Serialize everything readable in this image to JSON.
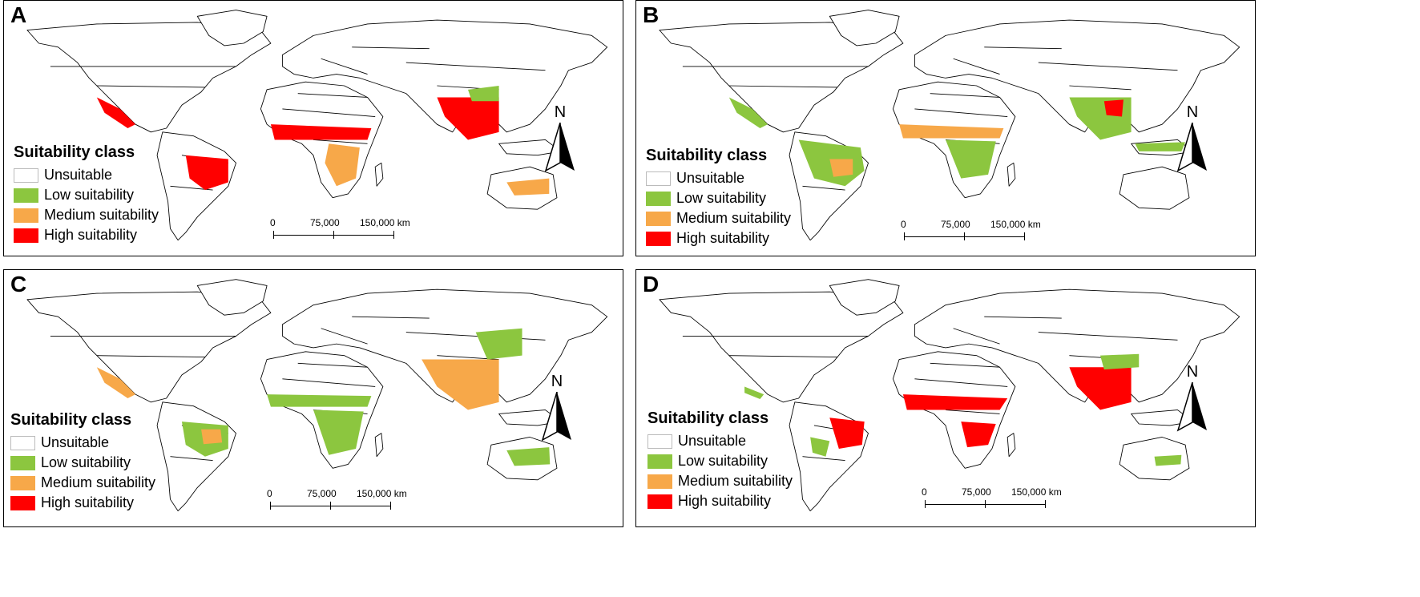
{
  "colors": {
    "unsuitable": "#ffffff",
    "low": "#8cc63f",
    "medium": "#f7a849",
    "high": "#ff0000",
    "border": "#000000"
  },
  "legend": {
    "title": "Suitability class",
    "items": [
      "Unsuitable",
      "Low suitability",
      "Medium suitability",
      "High suitability"
    ]
  },
  "scale_bar": {
    "labels": [
      "0",
      "75,000",
      "150,000 km"
    ]
  },
  "north_arrow": {
    "label": "N"
  },
  "panels": [
    {
      "letter": "A",
      "dominant": "high"
    },
    {
      "letter": "B",
      "dominant": "low"
    },
    {
      "letter": "C",
      "dominant": "low"
    },
    {
      "letter": "D",
      "dominant": "high"
    }
  ]
}
